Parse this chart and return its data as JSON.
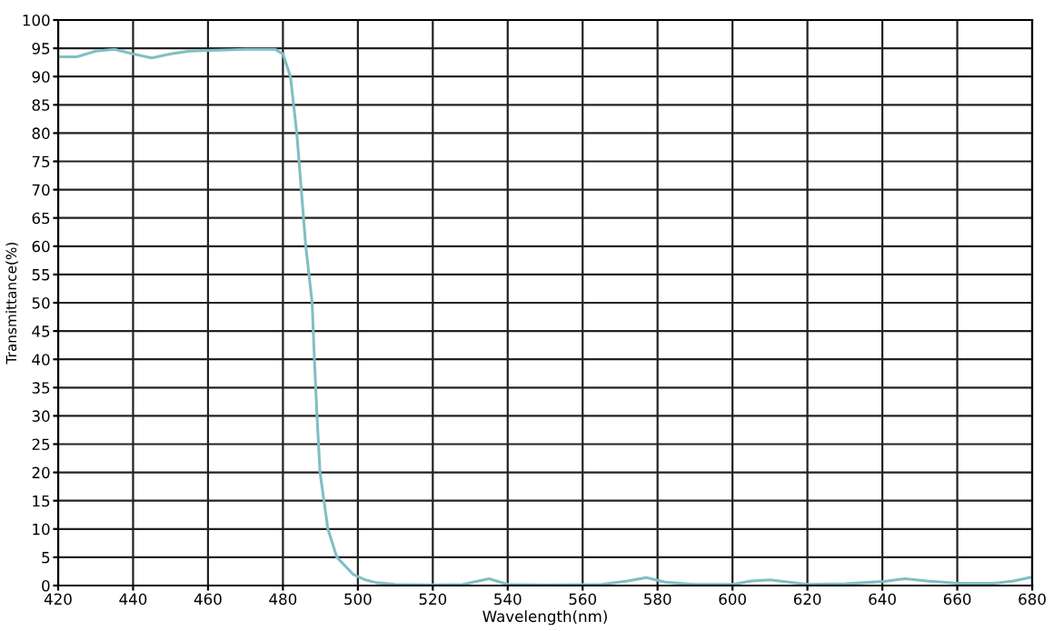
{
  "chart_data": {
    "type": "line",
    "xlabel": "Wavelength(nm)",
    "ylabel": "Transmittance(%)",
    "x": [
      420,
      425,
      430,
      435,
      440,
      445,
      450,
      455,
      460,
      470,
      478,
      480,
      482,
      483.7,
      484.9,
      486.1,
      487.8,
      488.4,
      489.1,
      489.9,
      492,
      494.4,
      498.7,
      502,
      505,
      510,
      520,
      528,
      535,
      540,
      550,
      565,
      572,
      577,
      582,
      590,
      600,
      605,
      610,
      615,
      620,
      630,
      640,
      646,
      652,
      660,
      670,
      675,
      680
    ],
    "series": [
      {
        "color": "#7fbfc4",
        "values": [
          93.5,
          93.5,
          94.5,
          94.8,
          94,
          93.3,
          94,
          94.5,
          94.6,
          94.8,
          94.8,
          94,
          90,
          80,
          70,
          60,
          50,
          40,
          30,
          20,
          10,
          5,
          2,
          1,
          0.5,
          0.2,
          0.1,
          0.2,
          1.2,
          0.2,
          0.1,
          0.2,
          0.8,
          1.4,
          0.6,
          0.2,
          0.2,
          0.8,
          1,
          0.6,
          0.2,
          0.3,
          0.7,
          1.2,
          0.8,
          0.4,
          0.4,
          0.8,
          1.5
        ]
      }
    ],
    "xlim": [
      420,
      680
    ],
    "ylim": [
      0,
      100
    ],
    "xticks": [
      420,
      440,
      460,
      480,
      500,
      520,
      540,
      560,
      580,
      600,
      620,
      640,
      660,
      680
    ],
    "yticks": [
      0,
      5,
      10,
      15,
      20,
      25,
      30,
      35,
      40,
      45,
      50,
      55,
      60,
      65,
      70,
      75,
      80,
      85,
      90,
      95,
      100
    ],
    "grid": true,
    "marker": "none",
    "line_style": "solid"
  }
}
